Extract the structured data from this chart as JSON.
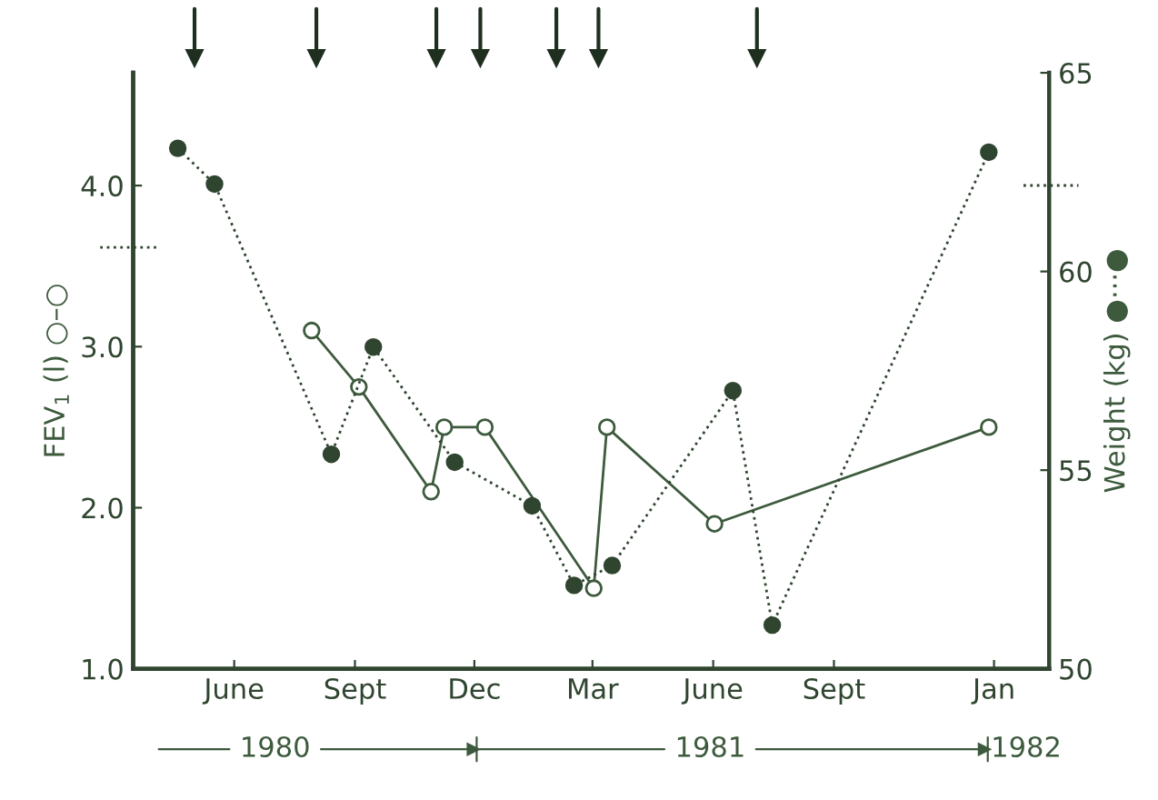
{
  "chart_data": {
    "type": "line",
    "xlim": [
      "1980-03-16",
      "1982-02-12"
    ],
    "xticks": [
      {
        "value": "1980-06-01",
        "label": "June"
      },
      {
        "value": "1980-09-01",
        "label": "Sept"
      },
      {
        "value": "1980-12-01",
        "label": "Dec"
      },
      {
        "value": "1981-03-01",
        "label": "Mar"
      },
      {
        "value": "1981-06-01",
        "label": "June"
      },
      {
        "value": "1981-09-01",
        "label": "Sept"
      },
      {
        "value": "1982-01-01",
        "label": "Jan"
      }
    ],
    "ylabel": "FEV$_{1}$ (l) ○–○",
    "y2label": "Weight (kg) ●···●",
    "ylim": [
      1.0,
      4.7
    ],
    "yticks": [
      {
        "value": 1.0,
        "label": "1.0"
      },
      {
        "value": 2.0,
        "label": "2.0"
      },
      {
        "value": 3.0,
        "label": "3.0"
      },
      {
        "value": 4.0,
        "label": "4.0"
      }
    ],
    "y2lim": [
      50,
      65
    ],
    "y2ticks": [
      50,
      55,
      60,
      65
    ],
    "grid": false,
    "legend": false,
    "series": [
      {
        "color": "#3d5a3d",
        "line_style": "solid",
        "marker": "circle",
        "x": [
          "1980-07-30",
          "1980-09-04",
          "1980-10-29",
          "1980-11-08",
          "1980-12-09",
          "1981-03-02",
          "1981-03-12",
          "1981-06-02",
          "1981-12-28"
        ],
        "values": [
          3.1,
          2.75,
          2.1,
          2.5,
          2.5,
          1.5,
          2.5,
          1.9,
          2.5
        ]
      },
      {
        "color": "#2f452f",
        "line_style": "dotted",
        "marker": "circle",
        "axis": "y2",
        "x": [
          "1980-04-19",
          "1980-05-17",
          "1980-08-14",
          "1980-09-15",
          "1980-11-16",
          "1981-01-14",
          "1981-02-15",
          "1981-03-16",
          "1981-06-16",
          "1981-07-16",
          "1981-12-28"
        ],
        "values": [
          63.1,
          62.2,
          55.4,
          58.1,
          55.2,
          54.1,
          52.1,
          52.6,
          57.0,
          51.1,
          63.0
        ]
      }
    ],
    "annotations": [
      "1980",
      "1981",
      "1982"
    ]
  }
}
